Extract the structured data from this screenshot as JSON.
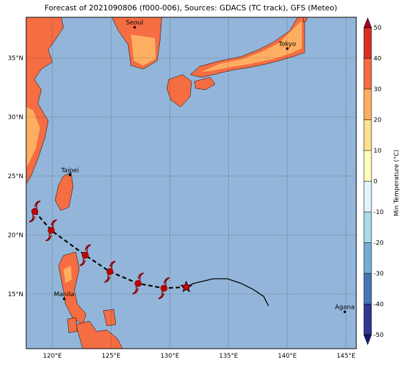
{
  "map": {
    "title": "Forecast of 2021090806 (f000-006), Sources: GDACS (TC track), GFS (Meteo)",
    "xlim": [
      117.77,
      145.88
    ],
    "ylim": [
      10.38,
      38.45
    ],
    "xticks": [
      {
        "value": 120,
        "label": "120°E"
      },
      {
        "value": 125,
        "label": "125°E"
      },
      {
        "value": 130,
        "label": "130°E"
      },
      {
        "value": 135,
        "label": "135°E"
      },
      {
        "value": 140,
        "label": "140°E"
      },
      {
        "value": 145,
        "label": "145°E"
      }
    ],
    "yticks": [
      {
        "value": 15,
        "label": "15°N"
      },
      {
        "value": 20,
        "label": "20°N"
      },
      {
        "value": 25,
        "label": "25°N"
      },
      {
        "value": 30,
        "label": "30°N"
      },
      {
        "value": 35,
        "label": "35°N"
      }
    ],
    "cities": [
      {
        "name": "Seoul",
        "lon": 127.0,
        "lat": 37.6
      },
      {
        "name": "Tokyo",
        "lon": 140.0,
        "lat": 35.8
      },
      {
        "name": "Taipei",
        "lon": 121.5,
        "lat": 25.1
      },
      {
        "name": "Manila",
        "lon": 121.0,
        "lat": 14.6
      },
      {
        "name": "Agana",
        "lon": 144.9,
        "lat": 13.5
      }
    ],
    "forecast_track": {
      "lon": [
        118.5,
        119.9,
        122.8,
        124.9,
        127.3,
        129.5
      ],
      "lat": [
        22.0,
        20.4,
        18.3,
        16.9,
        15.9,
        15.5
      ]
    },
    "current_position": {
      "lon": 131.4,
      "lat": 15.6
    },
    "past_track": {
      "lon": [
        131.4,
        132.0,
        133.7,
        134.9,
        136.1,
        137.1,
        138.0,
        138.4
      ],
      "lat": [
        15.6,
        15.9,
        16.3,
        16.3,
        15.9,
        15.4,
        14.8,
        14.0
      ]
    },
    "colorbar": {
      "label": "Min Temperature (°C)",
      "lim": [
        -50,
        50
      ],
      "ticks": [
        -50,
        -40,
        -30,
        -20,
        -10,
        0,
        10,
        20,
        30,
        40,
        50
      ],
      "colors": [
        "#313695",
        "#4575b4",
        "#74add1",
        "#abd9e9",
        "#e0f3f8",
        "#ffffbf",
        "#fee090",
        "#fdae61",
        "#f46d43",
        "#d73027"
      ],
      "under_color": "#1a1a70",
      "over_color": "#a50026"
    }
  }
}
